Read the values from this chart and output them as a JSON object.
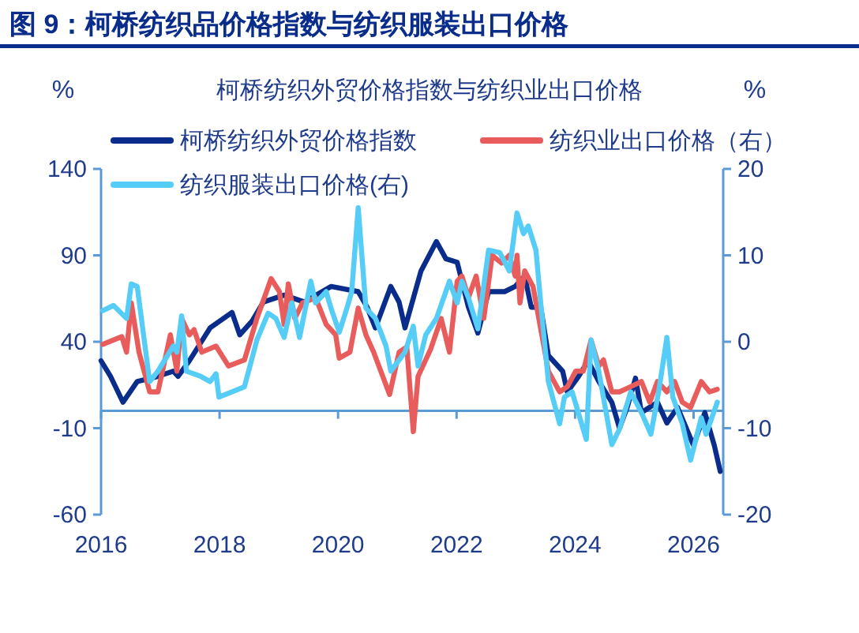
{
  "chart_data": {
    "type": "line",
    "title": "图 9：柯桥纺织品价格指数与纺织服装出口价格",
    "subtitle": "柯桥纺织外贸价格指数与纺织业出口价格",
    "ylabel": "%",
    "y2label": "%",
    "xlim": [
      2016,
      2026.5
    ],
    "xticks": [
      2016,
      2018,
      2020,
      2022,
      2024,
      2026
    ],
    "ylim": [
      -60,
      140
    ],
    "yticks": [
      -60,
      -10,
      40,
      90,
      140
    ],
    "y2lim": [
      -20,
      20
    ],
    "y2ticks": [
      -20,
      -10,
      0,
      10,
      20
    ],
    "grid": false,
    "legend": "top left",
    "line_style": "solid",
    "marker": "none",
    "ref_lines": [
      {
        "axis": "y",
        "value": 0,
        "color": "#5b9bd5"
      }
    ],
    "series": [
      {
        "name": "柯桥纺织外贸价格指数",
        "color": "#0a2d8c",
        "x": [
          2016.0,
          2016.16,
          2016.37,
          2016.61,
          2016.96,
          2017.22,
          2017.3,
          2017.49,
          2017.84,
          2018.21,
          2018.34,
          2018.55,
          2018.74,
          2019.09,
          2019.43,
          2019.88,
          2020.34,
          2020.49,
          2020.63,
          2020.89,
          2021.03,
          2021.13,
          2021.4,
          2021.66,
          2021.82,
          2022.01,
          2022.2,
          2022.36,
          2022.54,
          2022.81,
          2022.99,
          2023.15,
          2023.26,
          2023.42,
          2023.55,
          2023.79,
          2023.87,
          2024.06,
          2024.22,
          2024.4,
          2024.62,
          2024.75,
          2024.88,
          2025.02,
          2025.12,
          2025.39,
          2025.55,
          2025.73,
          2026.0,
          2026.19,
          2026.35,
          2026.45
        ],
        "values": [
          29,
          20,
          5,
          17,
          20,
          23,
          20,
          29,
          48,
          57,
          44,
          52,
          63,
          67,
          63,
          72,
          69,
          60,
          48,
          72,
          63,
          48,
          81,
          98,
          88,
          86,
          60,
          45,
          69,
          69,
          72,
          78,
          60,
          60,
          32,
          23,
          11,
          20,
          29,
          17,
          5,
          -10,
          2,
          19,
          -1,
          5,
          -7,
          2,
          -20,
          -1,
          -20,
          -35
        ]
      },
      {
        "name": "纺织业出口价格（右）",
        "color": "#e85c5c",
        "axis": "y2",
        "x": [
          2016.03,
          2016.35,
          2016.43,
          2016.51,
          2016.64,
          2016.82,
          2016.96,
          2017.17,
          2017.28,
          2017.36,
          2017.49,
          2017.57,
          2017.7,
          2017.94,
          2018.15,
          2018.42,
          2018.63,
          2018.87,
          2019.01,
          2019.09,
          2019.16,
          2019.27,
          2019.4,
          2019.62,
          2019.8,
          2019.96,
          2020.02,
          2020.2,
          2020.34,
          2020.47,
          2020.6,
          2020.87,
          2021.03,
          2021.16,
          2021.27,
          2021.35,
          2021.56,
          2021.74,
          2021.88,
          2022.01,
          2022.09,
          2022.2,
          2022.33,
          2022.46,
          2022.6,
          2022.76,
          2022.89,
          2022.99,
          2023.02,
          2023.07,
          2023.15,
          2023.29,
          2023.42,
          2023.55,
          2023.74,
          2023.87,
          2024.01,
          2024.14,
          2024.27,
          2024.4,
          2024.48,
          2024.62,
          2024.75,
          2024.94,
          2025.12,
          2025.26,
          2025.39,
          2025.55,
          2025.68,
          2025.81,
          2025.95,
          2026.13,
          2026.27,
          2026.4
        ],
        "values": [
          -0.3,
          0.6,
          -1.2,
          4.5,
          -1.2,
          -5.8,
          -5.8,
          0.8,
          -3.4,
          2.7,
          0.8,
          1.4,
          -1.2,
          -0.5,
          -2.8,
          -2.1,
          2.7,
          7.3,
          5.8,
          2.0,
          6.7,
          2.7,
          4.5,
          5.1,
          2.0,
          0.8,
          -1.9,
          -1.2,
          3.9,
          0.8,
          -1.2,
          -6.1,
          -1.2,
          -0.6,
          -10.4,
          -4.0,
          -0.9,
          2.7,
          -1.2,
          7.0,
          7.6,
          5.1,
          7.6,
          2.7,
          10.0,
          9.1,
          10.0,
          7.6,
          10.0,
          4.5,
          8.2,
          6.4,
          1.5,
          -3.4,
          -5.8,
          -5.2,
          -3.4,
          -3.4,
          0.2,
          -2.8,
          -2.1,
          -5.8,
          -5.8,
          -5.2,
          -4.6,
          -7.0,
          -4.6,
          -5.8,
          -4.6,
          -7.0,
          -7.6,
          -4.6,
          -5.8,
          -5.5
        ]
      },
      {
        "name": "纺织服装出口价格(右)",
        "color": "#55cdf7",
        "axis": "y2",
        "x": [
          2016.03,
          2016.21,
          2016.43,
          2016.51,
          2016.61,
          2016.82,
          2016.96,
          2017.22,
          2017.28,
          2017.36,
          2017.44,
          2017.68,
          2017.84,
          2017.94,
          2017.99,
          2018.21,
          2018.42,
          2018.63,
          2018.82,
          2018.95,
          2019.09,
          2019.22,
          2019.35,
          2019.54,
          2019.62,
          2019.8,
          2019.88,
          2020.02,
          2020.15,
          2020.23,
          2020.34,
          2020.47,
          2020.63,
          2020.81,
          2020.89,
          2021.13,
          2021.27,
          2021.35,
          2021.48,
          2021.66,
          2021.88,
          2022.01,
          2022.09,
          2022.2,
          2022.36,
          2022.54,
          2022.73,
          2022.89,
          2023.02,
          2023.13,
          2023.21,
          2023.34,
          2023.42,
          2023.55,
          2023.74,
          2023.82,
          2023.95,
          2024.19,
          2024.27,
          2024.4,
          2024.62,
          2024.75,
          2024.94,
          2025.12,
          2025.28,
          2025.41,
          2025.55,
          2025.65,
          2025.81,
          2025.95,
          2026.13,
          2026.21,
          2026.4
        ],
        "values": [
          3.6,
          4.2,
          2.7,
          6.7,
          6.4,
          -4.6,
          -3.4,
          -0.5,
          -1.2,
          3.0,
          -3.4,
          -4.0,
          -4.6,
          -3.7,
          -6.4,
          -5.8,
          -5.2,
          0.2,
          3.3,
          2.7,
          0.5,
          4.5,
          0.5,
          7.0,
          4.5,
          5.8,
          3.9,
          1.1,
          3.9,
          5.8,
          15.5,
          3.9,
          2.7,
          -0.5,
          -3.4,
          -1.2,
          1.8,
          -2.8,
          0.8,
          2.7,
          7.0,
          4.5,
          7.0,
          5.1,
          1.5,
          10.6,
          10.3,
          8.2,
          14.9,
          12.5,
          13.4,
          10.6,
          4.5,
          -4.6,
          -9.5,
          -6.4,
          -5.8,
          -11.3,
          0.2,
          -3.4,
          -11.9,
          -10.1,
          -5.8,
          -8.2,
          -10.7,
          -5.8,
          0.5,
          -6.4,
          -9.5,
          -13.7,
          -8.8,
          -10.7,
          -7.0
        ]
      }
    ]
  }
}
